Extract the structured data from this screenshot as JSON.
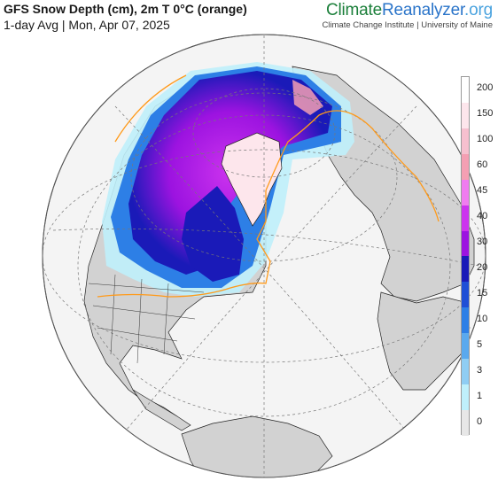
{
  "header": {
    "title": "GFS Snow Depth (cm), 2m T 0°C (orange)",
    "subtitle": "1-day Avg | Mon, Apr 07, 2025",
    "brand_part1": "Climate",
    "brand_part2": "Reanalyzer",
    "brand_part3": ".org",
    "institution": "Climate Change Institute | University of Maine"
  },
  "legend": {
    "labels": [
      "200",
      "150",
      "100",
      "60",
      "45",
      "40",
      "30",
      "20",
      "15",
      "10",
      "5",
      "3",
      "1",
      "0"
    ],
    "colors": [
      "#ffffff",
      "#fde6ec",
      "#f6c0cf",
      "#f49fb3",
      "#f07cf0",
      "#cc33ee",
      "#9c13e0",
      "#1a1ab8",
      "#1f4fd6",
      "#2d7fe6",
      "#5aa9ee",
      "#8fcdf3",
      "#bff0fb",
      "#e7e7e7"
    ]
  },
  "map": {
    "projection": "orthographic",
    "ocean_color": "#f4f4f4",
    "land_color": "#d2d2d2",
    "isotherm_color": "#ff9a1a"
  }
}
